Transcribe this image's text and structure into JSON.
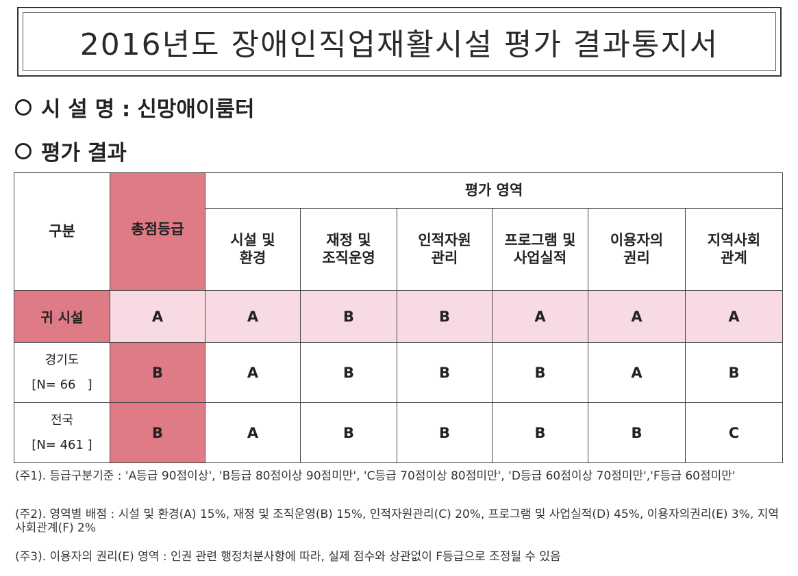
{
  "document": {
    "title": "2016년도 장애인직업재활시설 평가 결과통지서",
    "facility_label": "시 설 명 :",
    "facility_name": "신망애이룸터",
    "result_label": "평가 결과"
  },
  "table": {
    "category_header": "구분",
    "total_grade_header": "총점등급",
    "area_header": "평가 영역",
    "areas": [
      {
        "line1": "시설 및",
        "line2": "환경"
      },
      {
        "line1": "재정 및",
        "line2": "조직운영"
      },
      {
        "line1": "인적자원",
        "line2": "관리"
      },
      {
        "line1": "프로그램 및",
        "line2": "사업실적"
      },
      {
        "line1": "이용자의",
        "line2": "권리"
      },
      {
        "line1": "지역사회",
        "line2": "관계"
      }
    ],
    "rows": [
      {
        "label1": "귀 시설",
        "label2": "",
        "total": "A",
        "grades": [
          "A",
          "B",
          "B",
          "A",
          "A",
          "A"
        ]
      },
      {
        "label1": "경기도",
        "label2": "[N= 66   ]",
        "total": "B",
        "grades": [
          "A",
          "B",
          "B",
          "B",
          "A",
          "B"
        ]
      },
      {
        "label1": "전국",
        "label2": "[N= 461 ]",
        "total": "B",
        "grades": [
          "A",
          "B",
          "B",
          "B",
          "B",
          "C"
        ]
      }
    ]
  },
  "notes": [
    "(주1). 등급구분기준 : 'A등급 90점이상', 'B등급 80점이상 90점미만', 'C등급 70점이상 80점미만', 'D등급 60점이상 70점미만','F등급 60점미만'",
    "(주2). 영역별 배점 : 시설 및 환경(A) 15%, 재정 및 조직운영(B) 15%, 인적자원관리(C) 20%, 프로그램 및 사업실적(D) 45%, 이용자의권리(E) 3%, 지역사회관계(F) 2%",
    "(주3). 이용자의 권리(E) 영역 : 인권 관련 행정처분사항에 따라, 실제 점수와 상관없이 F등급으로 조정될 수 있음"
  ],
  "colors": {
    "highlight": "#df7b86",
    "highlight_light": "#f8dbe2"
  }
}
